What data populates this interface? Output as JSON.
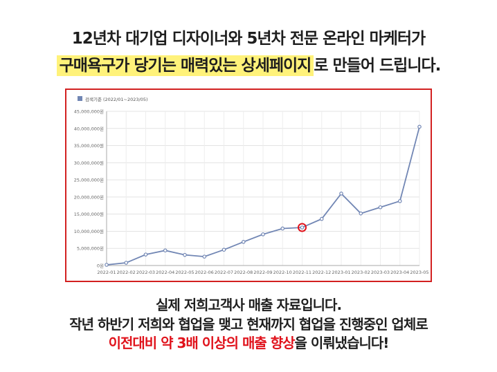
{
  "headline": {
    "line1": "12년차 대기업 디자이너와 5년차 전문 온라인 마케터가",
    "line2_highlight": "구매욕구가 당기는 매력있는 상세페이지",
    "line2_rest": "로 만들어 드립니다."
  },
  "caption": {
    "line1": "실제 저희고객사 매출 자료입니다.",
    "line2": "작년 하반기 저희와 협업을 맺고 현재까지 협업을 진행중인 업체로",
    "line3_highlight": "이전대비 약 3배 이상의 매출 향상",
    "line3_rest": "을 이뤄냈습니다!"
  },
  "colors": {
    "line": "#7186b4",
    "marker_fill": "#ffffff",
    "highlight_circle": "#e0121b",
    "frame_border": "#d22020",
    "text_highlight_bg": "#fff27a",
    "accent_red": "#e0121b"
  },
  "chart_data": {
    "type": "line",
    "legend": "검색기준 (2022/01~2023/05)",
    "legend_position": "top-left",
    "grid": true,
    "ylim": [
      0,
      45000000
    ],
    "yticks": [
      0,
      5000000,
      10000000,
      15000000,
      20000000,
      25000000,
      30000000,
      35000000,
      40000000,
      45000000
    ],
    "ytick_labels": [
      "0원",
      "5,000,000원",
      "10,000,000원",
      "15,000,000원",
      "20,000,000원",
      "25,000,000원",
      "30,000,000원",
      "35,000,000원",
      "40,000,000원",
      "45,000,000원"
    ],
    "categories": [
      "2022-01",
      "2022-02",
      "2022-03",
      "2022-04",
      "2022-05",
      "2022-06",
      "2022-07",
      "2022-08",
      "2022-09",
      "2022-10",
      "2022-11",
      "2022-12",
      "2023-01",
      "2023-02",
      "2023-03",
      "2023-04",
      "2023-05"
    ],
    "values": [
      200000,
      800000,
      3200000,
      4400000,
      3100000,
      2600000,
      4600000,
      6900000,
      9100000,
      10800000,
      11100000,
      13600000,
      21000000,
      15200000,
      17000000,
      18800000,
      40500000
    ],
    "highlighted_category": "2022-11"
  }
}
